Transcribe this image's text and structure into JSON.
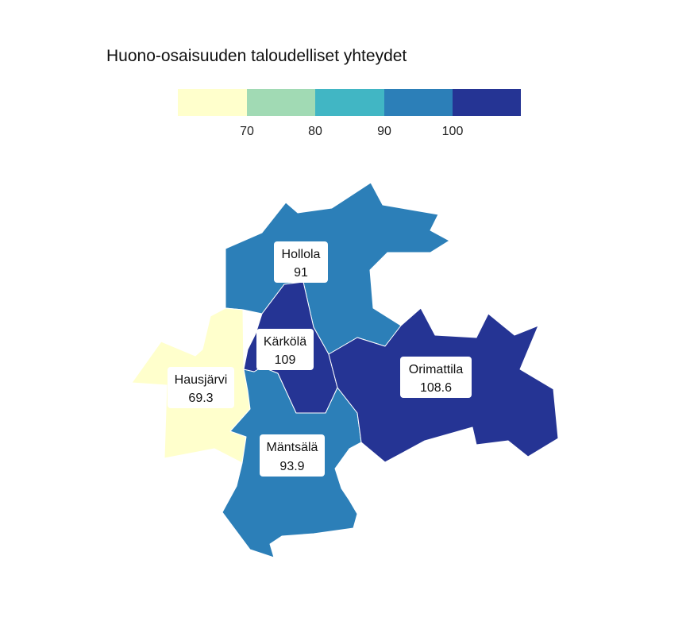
{
  "map": {
    "title": "Huono-osaisuuden taloudelliset yhteydet",
    "legend": {
      "colors": [
        "#ffffcc",
        "#a1dab4",
        "#41b6c4",
        "#2c7fb8",
        "#253494"
      ],
      "ticks": [
        "70",
        "80",
        "90",
        "100"
      ]
    },
    "regions": [
      {
        "name": "Hausjärvi",
        "value": "69.3",
        "color": "#ffffcc"
      },
      {
        "name": "Hollola",
        "value": "91",
        "color": "#2c7fb8"
      },
      {
        "name": "Mäntsälä",
        "value": "93.9",
        "color": "#2c7fb8"
      },
      {
        "name": "Kärkölä",
        "value": "109",
        "color": "#253494"
      },
      {
        "name": "Orimattila",
        "value": "108.6",
        "color": "#253494"
      }
    ]
  }
}
